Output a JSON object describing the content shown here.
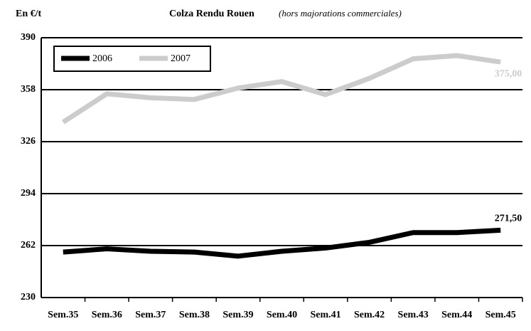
{
  "chart_data": {
    "type": "line",
    "title": "Colza Rendu Rouen",
    "subtitle": "(hors majorations commerciales)",
    "y_label": "En €/t",
    "categories": [
      "Sem.35",
      "Sem.36",
      "Sem.37",
      "Sem.38",
      "Sem.39",
      "Sem.40",
      "Sem.41",
      "Sem.42",
      "Sem.43",
      "Sem.44",
      "Sem.45"
    ],
    "series": [
      {
        "name": "2006",
        "color": "#000000",
        "values": [
          258,
          260,
          258.5,
          258,
          255.5,
          258.5,
          260.5,
          264,
          270,
          270,
          271.5
        ],
        "value_labels": [
          null,
          null,
          null,
          null,
          null,
          null,
          null,
          null,
          null,
          null,
          "271,50"
        ]
      },
      {
        "name": "2007",
        "color": "#cccccc",
        "values": [
          338,
          355.5,
          353,
          352,
          359,
          363,
          355,
          365,
          377,
          379,
          375
        ],
        "value_labels": [
          null,
          null,
          null,
          null,
          null,
          null,
          null,
          null,
          null,
          null,
          "375,00"
        ]
      }
    ],
    "ylim": [
      230,
      390
    ],
    "yticks": [
      230,
      262,
      294,
      326,
      358,
      390
    ],
    "grid": true,
    "legend": "top-left"
  }
}
